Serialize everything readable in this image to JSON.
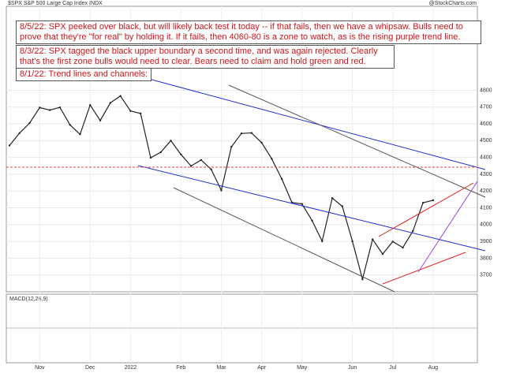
{
  "header": {
    "symbol": "$SPX S&P 500 Large Cap Index INDX",
    "source": "@StockCharts.com"
  },
  "annotations": [
    "8/5/22:  SPX peeked over black, but will likely back test it today -- if that fails, then we have a whipsaw.  Bulls need to prove that they're \"for real\" by holding it.  If it fails, then 4060-80 is a zone to watch, as is the rising purple trend line.",
    "8/3/22:  SPX tagged the black upper boundary a second time, and was again rejected.  Clearly that's the first zone bulls would need to clear.  Bears need to claim and hold green and red.",
    "8/1/22:  Trend lines and channels:"
  ],
  "indicator": "MACD(12,26,9)",
  "chart_data": {
    "type": "line",
    "categories": [
      null,
      null,
      null,
      "Nov",
      null,
      null,
      null,
      null,
      "Dec",
      null,
      null,
      null,
      "2022",
      null,
      null,
      null,
      null,
      "Feb",
      null,
      null,
      null,
      "Mar",
      null,
      null,
      null,
      "Apr",
      null,
      null,
      null,
      "May",
      null,
      null,
      null,
      null,
      "Jun",
      null,
      null,
      null,
      "Jul",
      null,
      null,
      null,
      "Aug"
    ],
    "series": [
      {
        "name": "$SPX",
        "color": "#222222",
        "values": [
          4471,
          4545,
          4605,
          4697,
          4682,
          4698,
          4594,
          4538,
          4712,
          4620,
          4725,
          4766,
          4677,
          4662,
          4398,
          4431,
          4500,
          4418,
          4349,
          4385,
          4329,
          4204,
          4463,
          4543,
          4546,
          4488,
          4392,
          4272,
          4132,
          4123,
          4024,
          3901,
          4158,
          4109,
          3901,
          3675,
          3912,
          3825,
          3899,
          3863,
          3962,
          4130,
          4145
        ]
      }
    ],
    "ylim": [
      3600,
      5300
    ],
    "yticks": [
      3700,
      3800,
      3900,
      4000,
      4100,
      4200,
      4300,
      4400,
      4500,
      4600,
      4700,
      4800
    ],
    "grid": true
  }
}
